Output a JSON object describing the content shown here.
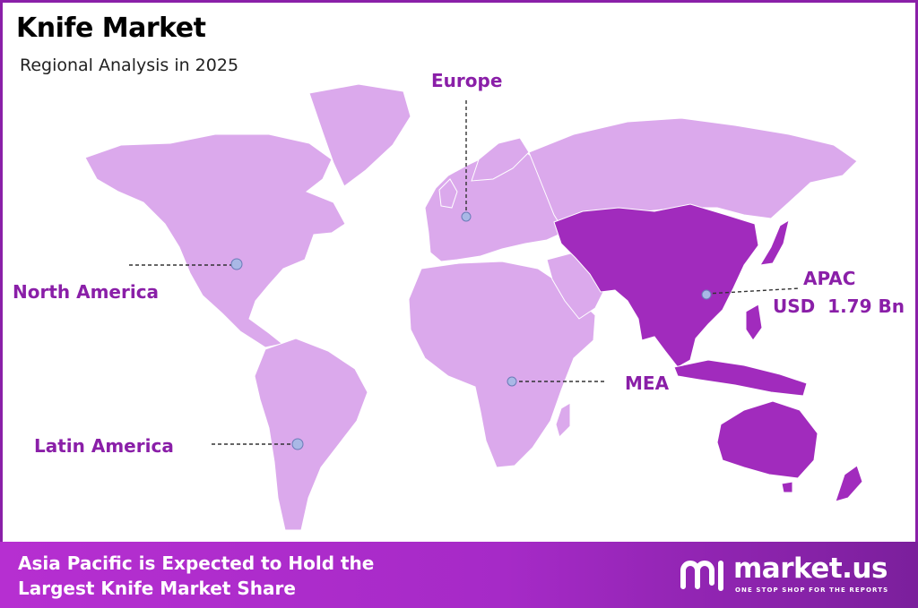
{
  "header": {
    "title": "Knife Market",
    "subtitle": "Regional Analysis in 2025"
  },
  "regions": {
    "europe": {
      "label": "Europe"
    },
    "north_america": {
      "label": "North America"
    },
    "latin_america": {
      "label": "Latin America"
    },
    "mea": {
      "label": "MEA"
    },
    "apac": {
      "label": "APAC",
      "value": "USD  1.79 Bn",
      "highlighted": true
    }
  },
  "footer": {
    "line1": "Asia Pacific is Expected to Hold the",
    "line2": "Largest Knife Market Share",
    "logo_name": "market.us",
    "logo_tagline": "ONE STOP SHOP FOR THE REPORTS"
  },
  "colors": {
    "land": "#dba9ec",
    "highlight": "#a12bbd",
    "accent": "#8a1fa8",
    "marker": "#a9b8e6"
  }
}
